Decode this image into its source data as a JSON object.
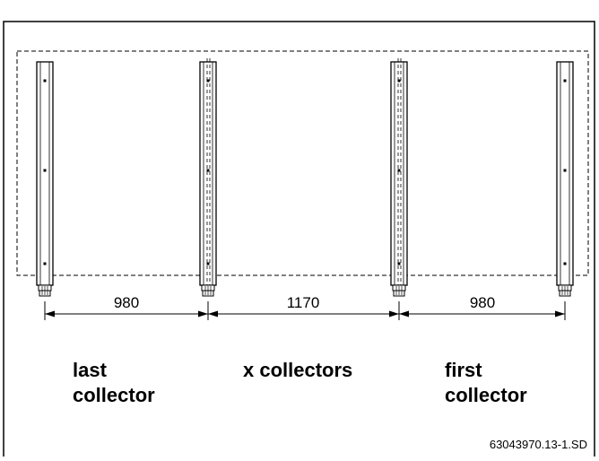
{
  "dimensions": [
    {
      "value": "980"
    },
    {
      "value": "1170"
    },
    {
      "value": "980"
    }
  ],
  "labels": {
    "last_collector_line1": "last",
    "last_collector_line2": "collector",
    "x_collectors": "x collectors",
    "first_collector_line1": "first",
    "first_collector_line2": "collector"
  },
  "reference_code": "63043970.13-1.SD",
  "collector_count": 4
}
